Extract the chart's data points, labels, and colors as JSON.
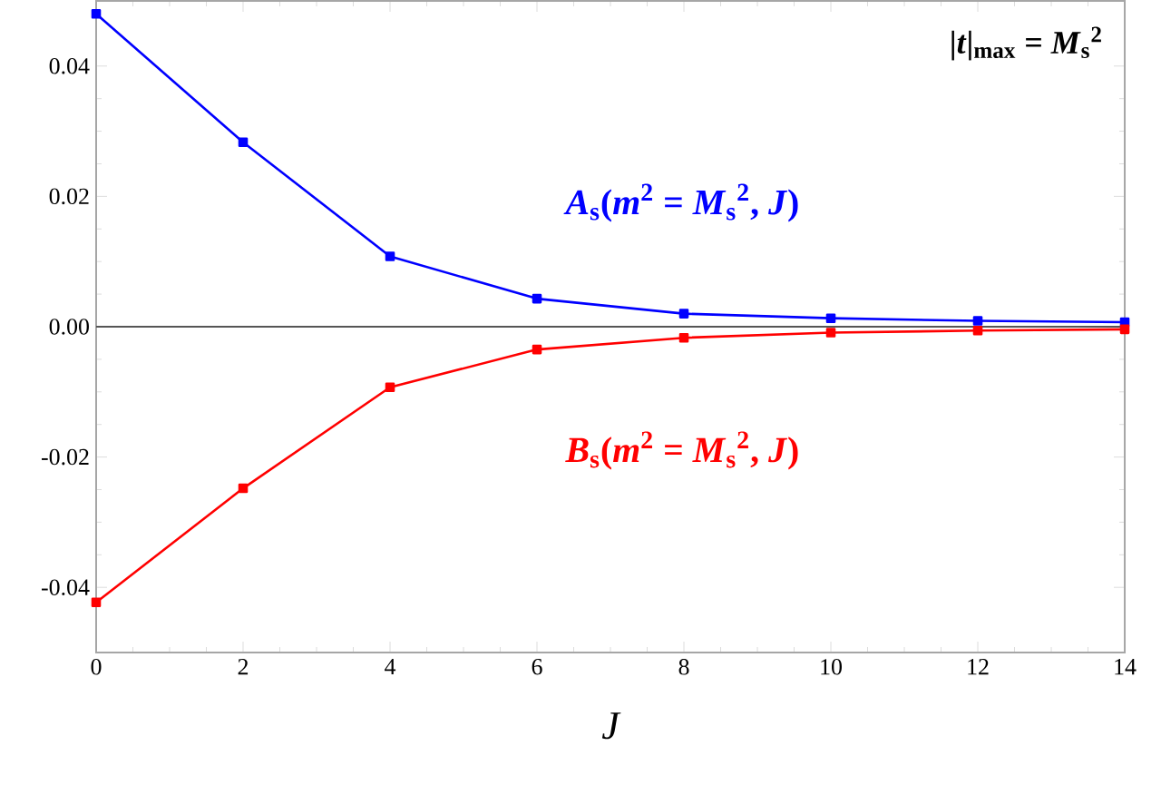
{
  "chart_data": {
    "type": "line",
    "xlabel": "J",
    "annotations": [
      "|*t*|$_{max}$ = *M*$_{s}$$^{2}$"
    ],
    "x": [
      0,
      2,
      4,
      6,
      8,
      10,
      12,
      14
    ],
    "series": [
      {
        "name": "*A*$_{s}$(*m*$^{2}$ = *M*$_{s}$$^{2}$, *J*)",
        "color": "#0000ff",
        "values": [
          0.048,
          0.0283,
          0.0108,
          0.0043,
          0.002,
          0.0013,
          0.0009,
          0.0007
        ]
      },
      {
        "name": "*B*$_{s}$(*m*$^{2}$ = *M*$_{s}$$^{2}$, *J*)",
        "color": "#ff0000",
        "values": [
          -0.0423,
          -0.0248,
          -0.0093,
          -0.0035,
          -0.0017,
          -0.0009,
          -0.0006,
          -0.0004
        ]
      }
    ],
    "xlim": [
      0,
      14
    ],
    "xticks": [
      0,
      2,
      4,
      6,
      8,
      10,
      12,
      14
    ],
    "ylim": [
      -0.05,
      0.05
    ],
    "yticks": [
      {
        "value": -0.04,
        "label": "-0.04"
      },
      {
        "value": -0.02,
        "label": "-0.02"
      },
      {
        "value": 0,
        "label": "0.00"
      },
      {
        "value": 0.02,
        "label": "0.02"
      },
      {
        "value": 0.04,
        "label": "0.04"
      }
    ],
    "ref_lines": [
      {
        "axis": "y",
        "value": 0,
        "color": "#555555"
      }
    ],
    "marker": "square",
    "line_style": "solid",
    "grid": false,
    "legend": false
  }
}
